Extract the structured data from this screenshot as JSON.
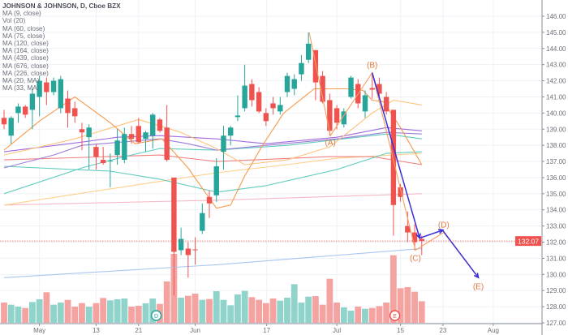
{
  "header": {
    "title": "JOHNSON & JOHNSON, D, Cboe BZX",
    "indicators": [
      "MA (9, close)",
      "Vol (20)",
      "MA (60, close)",
      "MA (75, close)",
      "MA (120, close)",
      "MA (164, close)",
      "MA (439, close)",
      "MA (676, close)",
      "MA (226, close)",
      "MA (20, MA)",
      "MA (33, MA)"
    ]
  },
  "colors": {
    "up": "#26a69a",
    "down": "#ef5350",
    "vol_up": "#8fd3ca",
    "vol_down": "#f5a3a1",
    "grid": "#eef2f7",
    "axis": "#8a8e99",
    "annotation": "#e07a3f",
    "arrow": "#3a2fd6",
    "last_price_bg": "#ef5350"
  },
  "chart_data": {
    "type": "candlestick",
    "title": "JOHNSON & JOHNSON, D, Cboe BZX",
    "ylim": [
      127,
      146
    ],
    "yticks": [
      "127.00",
      "128.00",
      "129.00",
      "130.00",
      "131.00",
      "132.00",
      "133.00",
      "134.00",
      "135.00",
      "136.00",
      "137.00",
      "138.00",
      "139.00",
      "140.00",
      "141.00",
      "142.00",
      "143.00",
      "144.00",
      "145.00",
      "146.00"
    ],
    "xlim": [
      -0.6,
      76
    ],
    "xticks": [
      {
        "label": "May",
        "i": 5
      },
      {
        "label": "13",
        "i": 13
      },
      {
        "label": "21",
        "i": 19
      },
      {
        "label": "Jun",
        "i": 27
      },
      {
        "label": "17",
        "i": 37.1
      },
      {
        "label": "Jul",
        "i": 47
      },
      {
        "label": "15",
        "i": 56
      },
      {
        "label": "23",
        "i": 62
      },
      {
        "label": "Aug",
        "i": 69.1
      }
    ],
    "last_price": "132.07",
    "ohlc": [
      [
        139.7,
        140.2,
        139.0,
        139.3
      ],
      [
        138.6,
        139.8,
        138.1,
        139.7
      ],
      [
        140.0,
        140.6,
        139.4,
        140.4
      ],
      [
        140.4,
        140.5,
        139.7,
        139.9
      ],
      [
        140.2,
        141.5,
        139.0,
        141.2
      ],
      [
        141.0,
        142.3,
        139.8,
        142.0
      ],
      [
        141.9,
        142.2,
        140.5,
        141.3
      ],
      [
        141.3,
        142.2,
        141.1,
        142.0
      ],
      [
        140.3,
        142.3,
        140.0,
        142.1
      ],
      [
        140.9,
        141.4,
        139.1,
        140.0
      ],
      [
        140.3,
        140.7,
        139.4,
        139.8
      ],
      [
        139.0,
        139.4,
        137.7,
        138.8
      ],
      [
        138.5,
        139.3,
        136.5,
        139.1
      ],
      [
        137.9,
        138.1,
        136.5,
        137.3
      ],
      [
        137.1,
        137.9,
        136.8,
        136.9
      ],
      [
        137.0,
        137.5,
        135.4,
        137.05
      ],
      [
        137.4,
        139.0,
        136.8,
        138.3
      ],
      [
        137.1,
        139.1,
        136.9,
        138.7
      ],
      [
        138.7,
        139.2,
        138.1,
        138.4
      ],
      [
        139.2,
        139.7,
        138.1,
        138.2
      ],
      [
        138.4,
        138.9,
        137.6,
        138.8
      ],
      [
        138.6,
        140.0,
        137.8,
        139.9
      ],
      [
        139.6,
        139.7,
        138.8,
        138.9
      ],
      [
        139.1,
        140.5,
        137.0,
        137.1
      ],
      [
        136.0,
        136.0,
        128.7,
        131.4
      ],
      [
        131.5,
        132.9,
        131.2,
        132.2
      ],
      [
        131.6,
        132.0,
        129.8,
        131.2
      ],
      [
        131.55,
        132.3,
        130.6,
        131.5
      ],
      [
        132.7,
        134.4,
        132.5,
        133.8
      ],
      [
        134.8,
        135.2,
        133.5,
        134.4
      ],
      [
        134.9,
        137.2,
        134.5,
        136.7
      ],
      [
        137.6,
        139.2,
        136.5,
        138.6
      ],
      [
        138.6,
        139.2,
        138.0,
        139.1
      ],
      [
        139.75,
        141.1,
        139.5,
        139.85
      ],
      [
        140.3,
        143.0,
        140.1,
        141.7
      ],
      [
        141.8,
        142.1,
        140.4,
        140.8
      ],
      [
        141.3,
        141.6,
        140.0,
        140.1
      ],
      [
        140.0,
        140.3,
        139.2,
        139.5
      ],
      [
        140.6,
        141.0,
        139.9,
        140.3
      ],
      [
        140.1,
        141.0,
        139.9,
        140.5
      ],
      [
        141.3,
        142.5,
        141.0,
        142.3
      ],
      [
        141.5,
        142.4,
        141.1,
        142.1
      ],
      [
        142.4,
        143.6,
        142.0,
        143.1
      ],
      [
        143.3,
        145.0,
        143.1,
        144.3
      ],
      [
        143.9,
        143.9,
        140.8,
        141.9
      ],
      [
        142.3,
        142.6,
        140.6,
        140.7
      ],
      [
        140.8,
        141.2,
        138.6,
        138.9
      ],
      [
        140.3,
        140.5,
        139.0,
        139.4
      ],
      [
        139.3,
        140.3,
        139.1,
        140.1
      ],
      [
        141.0,
        142.3,
        140.9,
        142.2
      ],
      [
        141.8,
        142.1,
        140.3,
        140.6
      ],
      [
        140.1,
        141.4,
        139.7,
        141.1
      ],
      [
        141.55,
        142.5,
        140.9,
        141.45
      ],
      [
        141.8,
        142.2,
        141.0,
        141.2
      ],
      [
        141.0,
        141.3,
        139.9,
        140.1
      ],
      [
        140.2,
        140.2,
        132.4,
        134.3
      ],
      [
        135.4,
        135.6,
        134.5,
        134.8
      ],
      [
        133.0,
        133.9,
        132.0,
        132.6
      ],
      [
        132.6,
        133.1,
        131.5,
        132.0
      ],
      [
        132.2,
        132.4,
        131.2,
        132.07
      ]
    ],
    "volume_m": [
      7.5,
      6.7,
      6.0,
      5.5,
      7.7,
      8.7,
      11.3,
      6.7,
      7.5,
      8.5,
      6.0,
      7.3,
      6.0,
      7.3,
      9.2,
      8.3,
      8.7,
      9.0,
      6.0,
      6.3,
      7.2,
      9.0,
      7.0,
      15.3,
      25.5,
      9.3,
      10.0,
      10.8,
      8.5,
      8.8,
      11.7,
      8.5,
      6.5,
      10.5,
      11.8,
      9.5,
      8.5,
      7.3,
      9.0,
      8.2,
      9.3,
      14.3,
      7.5,
      9.7,
      9.9,
      6.7,
      16.3,
      7.5,
      5.7,
      4.5,
      6.0,
      5.2,
      5.5,
      6.2,
      7.5,
      25.0,
      12.8,
      13.2,
      11.5,
      8.0
    ],
    "events": [
      {
        "label": "D",
        "i": 21.5
      },
      {
        "label": "E",
        "i": 55.2
      }
    ],
    "ma_lines": [
      {
        "name": "MA (676, close)",
        "color": "#a9c6f0",
        "points": [
          [
            0,
            129.8
          ],
          [
            30,
            130.6
          ],
          [
            59,
            131.6
          ]
        ]
      },
      {
        "name": "MA (439, close)",
        "color": "#f6b8c4",
        "points": [
          [
            0,
            134.3
          ],
          [
            30,
            134.6
          ],
          [
            59,
            135.0
          ]
        ]
      },
      {
        "name": "MA (164, close)",
        "color": "#ffcf8a",
        "points": [
          [
            0,
            134.3
          ],
          [
            15,
            135.3
          ],
          [
            30,
            136.3
          ],
          [
            40,
            136.8
          ],
          [
            47,
            137.2
          ],
          [
            59,
            137.5
          ]
        ]
      },
      {
        "name": "MA (120, close)",
        "color": "#f08080",
        "points": [
          [
            0,
            137.1
          ],
          [
            22,
            137.4
          ],
          [
            30,
            137.0
          ],
          [
            46,
            137.3
          ],
          [
            52,
            137.3
          ],
          [
            59,
            136.8
          ]
        ]
      },
      {
        "name": "MA (226, close)",
        "color": "#5fcbbd",
        "points": [
          [
            0,
            136.7
          ],
          [
            15,
            136.4
          ],
          [
            22,
            135.9
          ],
          [
            30,
            135.1
          ],
          [
            37,
            135.5
          ],
          [
            47,
            136.5
          ],
          [
            54,
            137.5
          ],
          [
            59,
            137.6
          ]
        ]
      },
      {
        "name": "MA (60, close)",
        "color": "#5fcbbd",
        "points": [
          [
            0,
            135.0
          ],
          [
            11,
            136.6
          ],
          [
            17,
            137.3
          ],
          [
            22,
            137.8
          ],
          [
            30,
            137.7
          ],
          [
            40,
            138.0
          ],
          [
            54,
            138.7
          ],
          [
            59,
            138.4
          ]
        ]
      },
      {
        "name": "MA (75, close)",
        "color": "#a06ae0",
        "points": [
          [
            0,
            137.6
          ],
          [
            11,
            138.2
          ],
          [
            16,
            138.5
          ],
          [
            22,
            138.6
          ],
          [
            30,
            138.4
          ],
          [
            37,
            138.1
          ],
          [
            47,
            138.5
          ],
          [
            54,
            139.1
          ],
          [
            59,
            138.9
          ]
        ]
      },
      {
        "name": "MA (33, MA)",
        "color": "#9f7bd8",
        "points": [
          [
            0,
            136.6
          ],
          [
            7,
            137.4
          ],
          [
            11,
            138.0
          ],
          [
            22,
            138.4
          ],
          [
            26,
            138.1
          ],
          [
            30,
            137.7
          ],
          [
            37,
            138.0
          ],
          [
            47,
            138.4
          ],
          [
            54,
            138.8
          ],
          [
            59,
            138.7
          ]
        ]
      },
      {
        "name": "MA (20, MA)",
        "color": "#ffc27a",
        "points": [
          [
            0,
            137.4
          ],
          [
            10,
            138.4
          ],
          [
            19,
            139.6
          ],
          [
            25,
            138.8
          ],
          [
            30,
            137.8
          ],
          [
            34,
            136.8
          ],
          [
            40,
            137.1
          ],
          [
            46,
            137.9
          ],
          [
            52,
            140.0
          ],
          [
            55,
            140.8
          ],
          [
            59,
            140.5
          ]
        ]
      },
      {
        "name": "MA (9, close)",
        "color": "#f59a4e",
        "points": [
          [
            0,
            137.7
          ],
          [
            5,
            139.5
          ],
          [
            10,
            141.0
          ],
          [
            15,
            139.4
          ],
          [
            18.5,
            138.1
          ],
          [
            22.3,
            138.4
          ],
          [
            26,
            136.6
          ],
          [
            28.4,
            135.1
          ],
          [
            30,
            134.1
          ],
          [
            32,
            134.3
          ],
          [
            34,
            136.1
          ],
          [
            36.5,
            138.0
          ],
          [
            39.5,
            140.0
          ],
          [
            43.8,
            141.5
          ],
          [
            48.4,
            141.5
          ],
          [
            50.7,
            141.4
          ],
          [
            52,
            140.8
          ],
          [
            53.6,
            140.7
          ],
          [
            56,
            139.1
          ],
          [
            59,
            136.8
          ]
        ]
      }
    ],
    "wave_labels": [
      {
        "label": "(A)",
        "i": 46.1,
        "p": 138.6,
        "dy": 12
      },
      {
        "label": "(B)",
        "i": 52.0,
        "p": 142.5,
        "dy": -6
      },
      {
        "label": "(C)",
        "i": 58.1,
        "p": 131.5,
        "dy": 13
      },
      {
        "label": "(D)",
        "i": 62.1,
        "p": 132.6,
        "dy": -6
      },
      {
        "label": "(E)",
        "i": 67.0,
        "p": 129.8,
        "dy": 14
      }
    ],
    "zigzag": [
      [
        43.1,
        145.0
      ],
      [
        46.1,
        138.6
      ],
      [
        52.0,
        142.5
      ],
      [
        58.1,
        131.5
      ],
      [
        62.1,
        132.6
      ],
      [
        67.0,
        129.8
      ]
    ],
    "arrows": [
      [
        [
          52.0,
          142.5
        ],
        [
          58.7,
          132.25
        ]
      ],
      [
        [
          58.7,
          132.25
        ],
        [
          62.0,
          132.75
        ]
      ],
      [
        [
          62.0,
          132.7
        ],
        [
          67.0,
          129.8
        ]
      ]
    ]
  }
}
